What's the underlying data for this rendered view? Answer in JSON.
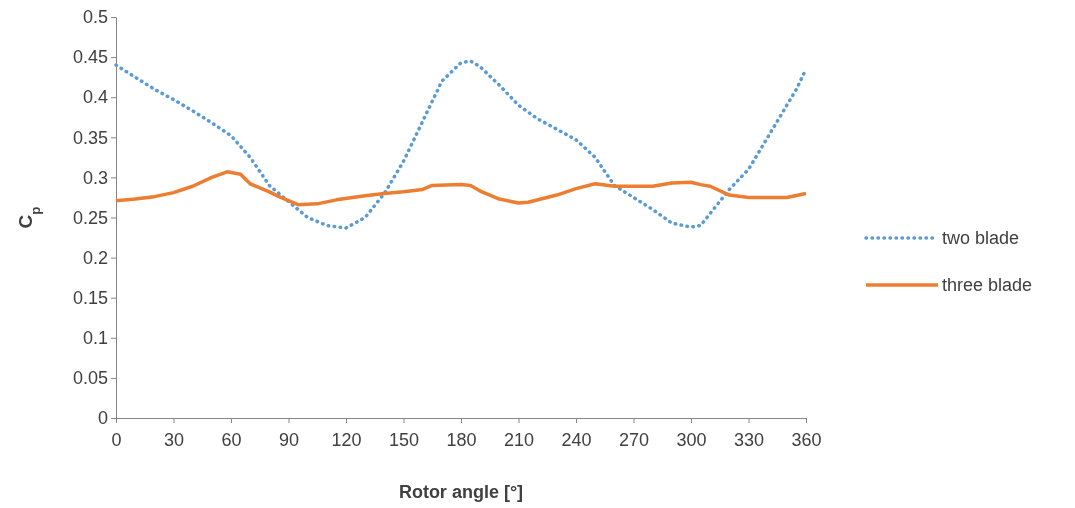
{
  "chart_data": {
    "type": "line",
    "xlabel": "Rotor angle [°]",
    "ylabel": "C$_{p}$",
    "xlim": [
      0,
      360
    ],
    "xticks": [
      0,
      30,
      60,
      90,
      120,
      150,
      180,
      210,
      240,
      270,
      300,
      330,
      360
    ],
    "ylim": [
      0,
      0.5
    ],
    "yticks": [
      0,
      0.05,
      0.1,
      0.15,
      0.2,
      0.25,
      0.3,
      0.35,
      0.4,
      0.45,
      0.5
    ],
    "grid": false,
    "legend": "right",
    "series": [
      {
        "name": "two blade",
        "color": "#5b9bd5",
        "line_style": "dotted",
        "x": [
          0,
          10,
          20,
          30,
          40,
          50,
          60,
          70,
          80,
          90,
          100,
          110,
          120,
          130,
          140,
          150,
          160,
          170,
          180,
          185,
          190,
          200,
          210,
          220,
          230,
          240,
          250,
          260,
          270,
          280,
          290,
          300,
          305,
          310,
          320,
          330,
          340,
          350,
          355,
          360
        ],
        "values": [
          0.44,
          0.425,
          0.41,
          0.397,
          0.383,
          0.368,
          0.352,
          0.325,
          0.29,
          0.27,
          0.25,
          0.24,
          0.237,
          0.25,
          0.28,
          0.32,
          0.37,
          0.42,
          0.443,
          0.445,
          0.438,
          0.415,
          0.39,
          0.373,
          0.36,
          0.347,
          0.325,
          0.29,
          0.275,
          0.26,
          0.243,
          0.238,
          0.24,
          0.255,
          0.285,
          0.31,
          0.35,
          0.39,
          0.41,
          0.435
        ]
      },
      {
        "name": "three blade",
        "color": "#ed7d31",
        "line_style": "solid",
        "x": [
          0,
          10,
          20,
          30,
          40,
          50,
          58,
          65,
          70,
          80,
          85,
          95,
          105,
          115,
          130,
          140,
          150,
          160,
          165,
          180,
          185,
          190,
          200,
          210,
          215,
          230,
          240,
          250,
          260,
          280,
          290,
          300,
          305,
          310,
          320,
          330,
          350,
          360
        ],
        "values": [
          0.271,
          0.273,
          0.276,
          0.281,
          0.289,
          0.3,
          0.307,
          0.304,
          0.292,
          0.282,
          0.276,
          0.266,
          0.267,
          0.272,
          0.277,
          0.28,
          0.282,
          0.285,
          0.29,
          0.291,
          0.29,
          0.283,
          0.273,
          0.268,
          0.269,
          0.278,
          0.286,
          0.292,
          0.289,
          0.289,
          0.293,
          0.294,
          0.291,
          0.289,
          0.278,
          0.275,
          0.275,
          0.28
        ]
      }
    ]
  }
}
